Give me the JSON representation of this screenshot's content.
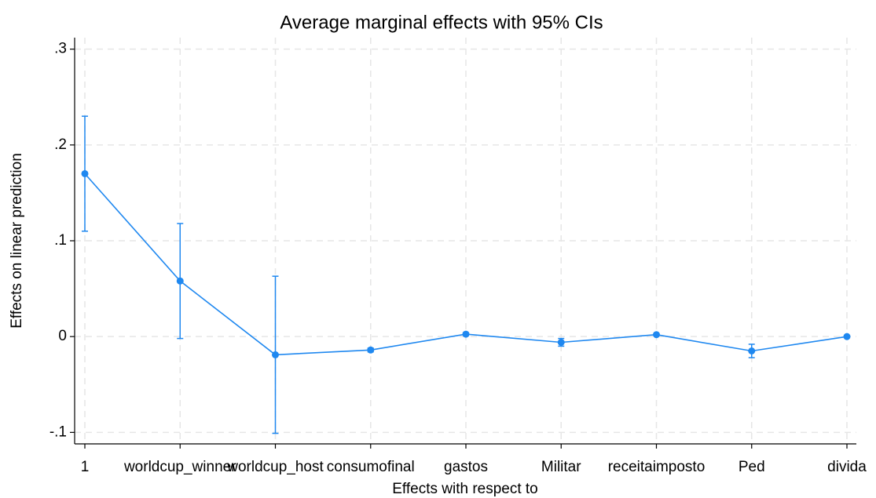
{
  "chart_data": {
    "type": "line",
    "title": "Average marginal effects with 95% CIs",
    "x_label": "Effects with respect to",
    "y_label": "Effects on linear prediction",
    "categories": [
      "1",
      "worldcup_winner",
      "worldcup_host",
      "consumofinal",
      "gastos",
      "Militar",
      "receitaimposto",
      "Ped",
      "divida"
    ],
    "series": [
      {
        "name": "Effects",
        "color": "#1f88f0",
        "values": [
          0.17,
          0.058,
          -0.019,
          -0.014,
          0.0025,
          -0.006,
          0.002,
          -0.015,
          0
        ],
        "lower": [
          0.11,
          -0.002,
          -0.101,
          -0.016,
          0.001,
          -0.01,
          0.001,
          -0.022,
          -0.001
        ],
        "upper": [
          0.23,
          0.118,
          0.063,
          -0.012,
          0.004,
          -0.002,
          0.003,
          -0.008,
          0.001
        ]
      }
    ],
    "ylim": [
      -0.112,
      0.312
    ],
    "yticks": [
      {
        "value": -0.1,
        "label": "-.1"
      },
      0,
      {
        "value": 0.1,
        "label": ".1"
      },
      {
        "value": 0.2,
        "label": ".2"
      },
      {
        "value": 0.3,
        "label": ".3"
      }
    ],
    "grid": true
  }
}
